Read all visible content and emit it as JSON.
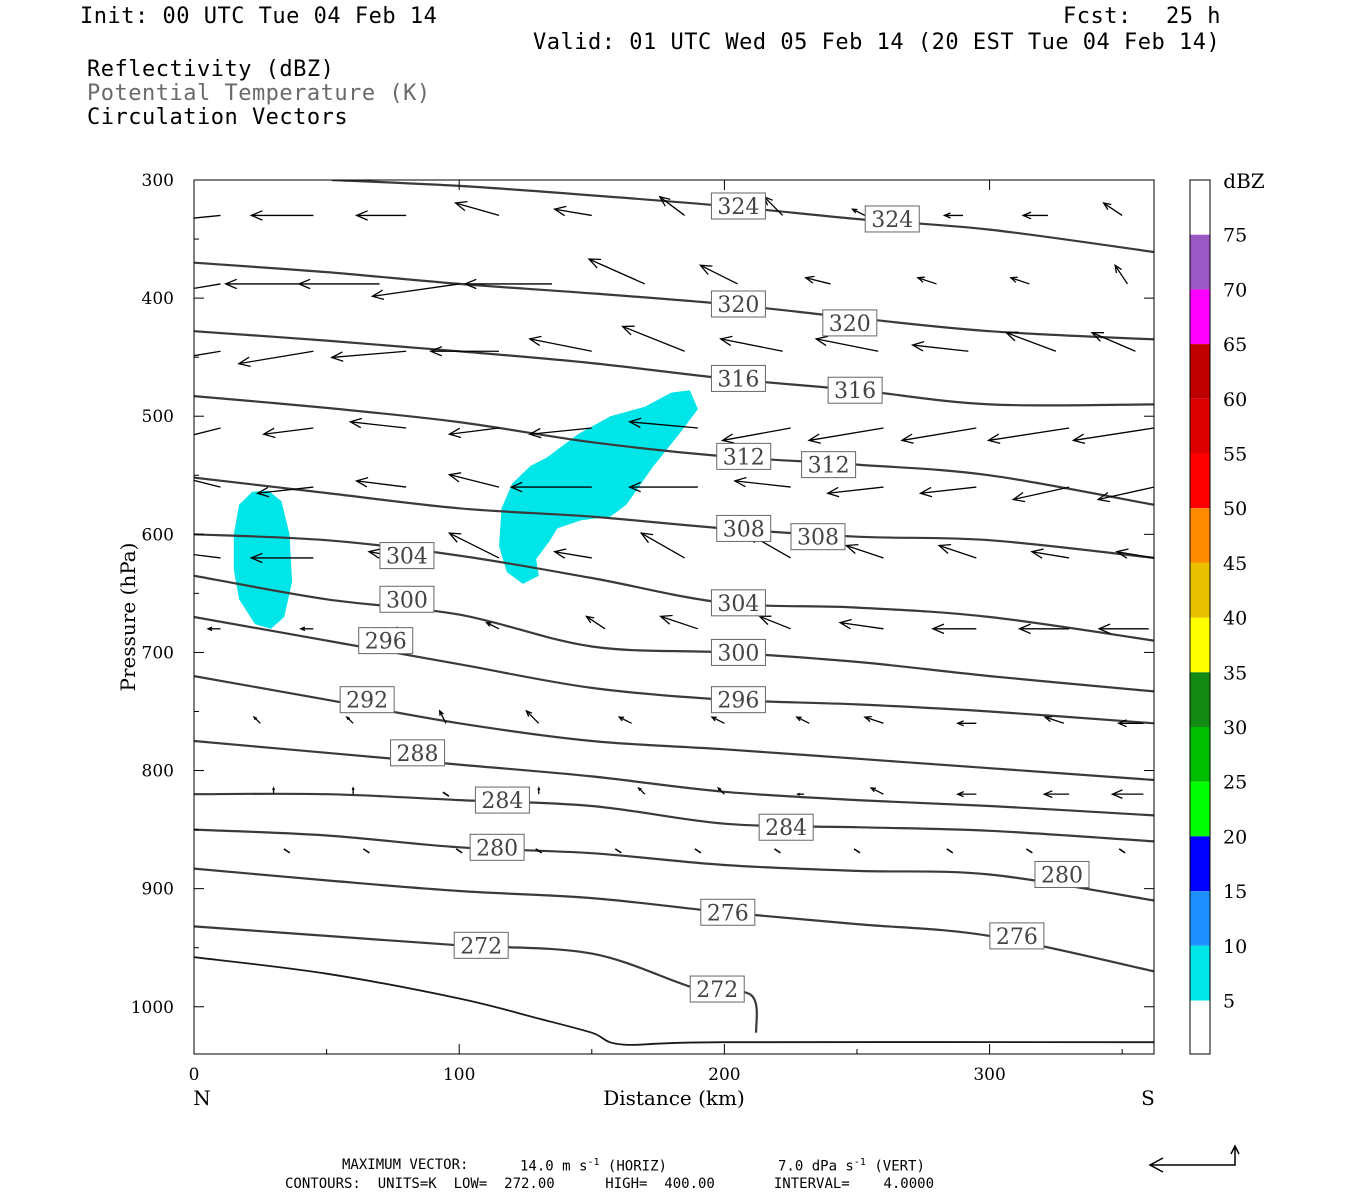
{
  "header": {
    "init": "Init: 00 UTC Tue 04 Feb 14",
    "fcst_label": "Fcst:",
    "fcst_value": "25 h",
    "valid": "Valid: 01 UTC Wed 05 Feb 14 (20 EST Tue 04 Feb 14)",
    "fields": [
      "Reflectivity (dBZ)",
      "Potential Temperature (K)",
      "Circulation Vectors"
    ]
  },
  "footer": {
    "max_vector_label": "MAXIMUM VECTOR:",
    "horiz_value": "14.0 m s",
    "horiz_exp": "-1",
    "horiz_unit": "(HORIZ)",
    "vert_value": "7.0 dPa s",
    "vert_exp": "-1",
    "vert_unit": "(VERT)",
    "contours": "CONTOURS:  UNITS=K  LOW=  272.00      HIGH=  400.00       INTERVAL=    4.0000"
  },
  "colors": {
    "contour": "#3a3a3a",
    "reflectivity_5": "#00e5e8"
  },
  "chart_data": {
    "type": "cross-section",
    "xlabel": "Distance (km)",
    "ylabel": "Pressure (hPa)",
    "xlim": [
      0,
      362
    ],
    "ylim": [
      300,
      1040
    ],
    "x_ticks": [
      0,
      100,
      200,
      300
    ],
    "y_ticks": [
      300,
      400,
      500,
      600,
      700,
      800,
      900,
      1000
    ],
    "x_end_labels": {
      "left": "N",
      "right": "S"
    },
    "colorbar": {
      "title": "dBZ",
      "levels": [
        "75",
        "70",
        "65",
        "60",
        "55",
        "50",
        "45",
        "40",
        "35",
        "30",
        "25",
        "20",
        "15",
        "10",
        "5"
      ],
      "colors": [
        "#9b59c6",
        "#ff00ff",
        "#c00000",
        "#dd0000",
        "#ff0000",
        "#ff8c00",
        "#e8c000",
        "#ffff00",
        "#138a13",
        "#00bf00",
        "#00ff00",
        "#0000ff",
        "#1e90ff",
        "#00e5e8",
        "#ffffff"
      ]
    },
    "reflectivity_areas": [
      {
        "dbz": "5-10",
        "polygon": [
          [
            15,
            600
          ],
          [
            17,
            575
          ],
          [
            22,
            564
          ],
          [
            28,
            563
          ],
          [
            33,
            572
          ],
          [
            36,
            600
          ],
          [
            37,
            640
          ],
          [
            34,
            670
          ],
          [
            29,
            680
          ],
          [
            23,
            676
          ],
          [
            17,
            655
          ],
          [
            15,
            630
          ]
        ]
      },
      {
        "dbz": "5-10",
        "polygon": [
          [
            116,
            578
          ],
          [
            120,
            557
          ],
          [
            127,
            542
          ],
          [
            133,
            535
          ],
          [
            145,
            515
          ],
          [
            157,
            500
          ],
          [
            170,
            492
          ],
          [
            180,
            480
          ],
          [
            187,
            478
          ],
          [
            190,
            494
          ],
          [
            183,
            515
          ],
          [
            173,
            543
          ],
          [
            163,
            575
          ],
          [
            157,
            585
          ],
          [
            146,
            588
          ],
          [
            137,
            595
          ],
          [
            134,
            606
          ],
          [
            129,
            621
          ],
          [
            130,
            635
          ],
          [
            124,
            642
          ],
          [
            118,
            632
          ],
          [
            115,
            610
          ]
        ]
      }
    ],
    "theta_contours": [
      {
        "value": "324",
        "points": [
          [
            52,
            300
          ],
          [
            100,
            305
          ],
          [
            150,
            313
          ],
          [
            200,
            322
          ],
          [
            250,
            333
          ],
          [
            300,
            342
          ],
          [
            362,
            361
          ]
        ],
        "labels": [
          [
            197,
            322
          ],
          [
            255,
            333
          ]
        ]
      },
      {
        "value": "320",
        "points": [
          [
            0,
            370
          ],
          [
            50,
            378
          ],
          [
            100,
            388
          ],
          [
            150,
            396
          ],
          [
            200,
            405
          ],
          [
            250,
            417
          ],
          [
            300,
            428
          ],
          [
            362,
            435
          ]
        ],
        "labels": [
          [
            197,
            405
          ],
          [
            239,
            421
          ]
        ]
      },
      {
        "value": "316",
        "points": [
          [
            0,
            428
          ],
          [
            50,
            436
          ],
          [
            100,
            445
          ],
          [
            150,
            455
          ],
          [
            200,
            468
          ],
          [
            250,
            478
          ],
          [
            300,
            490
          ],
          [
            362,
            490
          ]
        ],
        "labels": [
          [
            197,
            468
          ],
          [
            241,
            478
          ]
        ]
      },
      {
        "value": "312",
        "points": [
          [
            0,
            483
          ],
          [
            50,
            493
          ],
          [
            100,
            505
          ],
          [
            150,
            522
          ],
          [
            200,
            534
          ],
          [
            250,
            541
          ],
          [
            300,
            550
          ],
          [
            362,
            575
          ]
        ],
        "labels": [
          [
            199,
            534
          ],
          [
            231,
            541
          ]
        ]
      },
      {
        "value": "308",
        "points": [
          [
            0,
            552
          ],
          [
            50,
            565
          ],
          [
            100,
            578
          ],
          [
            150,
            585
          ],
          [
            200,
            595
          ],
          [
            250,
            602
          ],
          [
            300,
            605
          ],
          [
            362,
            620
          ]
        ],
        "labels": [
          [
            199,
            595
          ],
          [
            227,
            602
          ]
        ]
      },
      {
        "value": "304",
        "points": [
          [
            0,
            600
          ],
          [
            50,
            605
          ],
          [
            100,
            618
          ],
          [
            150,
            637
          ],
          [
            200,
            658
          ],
          [
            250,
            662
          ],
          [
            300,
            670
          ],
          [
            362,
            690
          ]
        ],
        "labels": [
          [
            72,
            618
          ],
          [
            197,
            658
          ]
        ]
      },
      {
        "value": "300",
        "points": [
          [
            0,
            635
          ],
          [
            50,
            655
          ],
          [
            100,
            668
          ],
          [
            150,
            695
          ],
          [
            200,
            700
          ],
          [
            250,
            708
          ],
          [
            300,
            720
          ],
          [
            362,
            733
          ]
        ],
        "labels": [
          [
            72,
            655
          ],
          [
            197,
            700
          ]
        ]
      },
      {
        "value": "296",
        "points": [
          [
            0,
            670
          ],
          [
            50,
            690
          ],
          [
            100,
            710
          ],
          [
            150,
            730
          ],
          [
            200,
            740
          ],
          [
            250,
            744
          ],
          [
            300,
            750
          ],
          [
            362,
            760
          ]
        ],
        "labels": [
          [
            64,
            690
          ],
          [
            197,
            740
          ]
        ]
      },
      {
        "value": "292",
        "points": [
          [
            0,
            720
          ],
          [
            50,
            740
          ],
          [
            100,
            760
          ],
          [
            150,
            775
          ],
          [
            200,
            782
          ],
          [
            250,
            790
          ],
          [
            300,
            798
          ],
          [
            362,
            808
          ]
        ],
        "labels": [
          [
            57,
            740
          ]
        ]
      },
      {
        "value": "288",
        "points": [
          [
            0,
            775
          ],
          [
            50,
            785
          ],
          [
            100,
            795
          ],
          [
            150,
            805
          ],
          [
            200,
            818
          ],
          [
            250,
            825
          ],
          [
            300,
            830
          ],
          [
            362,
            838
          ]
        ],
        "labels": [
          [
            76,
            785
          ]
        ]
      },
      {
        "value": "284",
        "points": [
          [
            0,
            820
          ],
          [
            50,
            820
          ],
          [
            100,
            825
          ],
          [
            150,
            830
          ],
          [
            200,
            845
          ],
          [
            250,
            848
          ],
          [
            300,
            851
          ],
          [
            362,
            860
          ]
        ],
        "labels": [
          [
            108,
            825
          ],
          [
            215,
            848
          ]
        ]
      },
      {
        "value": "280",
        "points": [
          [
            0,
            850
          ],
          [
            50,
            855
          ],
          [
            100,
            865
          ],
          [
            150,
            870
          ],
          [
            200,
            880
          ],
          [
            250,
            885
          ],
          [
            300,
            888
          ],
          [
            362,
            910
          ]
        ],
        "labels": [
          [
            106,
            865
          ],
          [
            319,
            888
          ]
        ]
      },
      {
        "value": "276",
        "points": [
          [
            0,
            883
          ],
          [
            50,
            893
          ],
          [
            100,
            902
          ],
          [
            150,
            908
          ],
          [
            200,
            920
          ],
          [
            250,
            930
          ],
          [
            300,
            940
          ],
          [
            362,
            970
          ]
        ],
        "labels": [
          [
            193,
            920
          ],
          [
            302,
            940
          ]
        ]
      },
      {
        "value": "272",
        "points": [
          [
            0,
            932
          ],
          [
            50,
            940
          ],
          [
            100,
            948
          ],
          [
            150,
            955
          ],
          [
            190,
            985
          ],
          [
            210,
            990
          ],
          [
            212,
            1022
          ]
        ],
        "labels": [
          [
            100,
            948
          ],
          [
            189,
            985
          ]
        ]
      }
    ],
    "surface_line": [
      [
        0,
        958
      ],
      [
        50,
        972
      ],
      [
        100,
        993
      ],
      [
        130,
        1010
      ],
      [
        150,
        1022
      ],
      [
        162,
        1032
      ],
      [
        200,
        1030
      ],
      [
        362,
        1030
      ]
    ],
    "vectors": [
      {
        "row": 330,
        "x": [
          10,
          45,
          80,
          115,
          150,
          185,
          222,
          253,
          290,
          322,
          350
        ],
        "u": [
          -1.0,
          -1.0,
          -0.8,
          -0.7,
          -0.6,
          -0.4,
          -0.3,
          -0.2,
          -0.3,
          -0.4,
          -0.3
        ],
        "w": [
          0.1,
          0.0,
          0.0,
          -0.2,
          -0.1,
          -0.3,
          -0.3,
          -0.1,
          0.0,
          0.0,
          -0.2
        ]
      },
      {
        "row": 388,
        "x": [
          10,
          40,
          70,
          100,
          135,
          170,
          205,
          240,
          280,
          315,
          352
        ],
        "u": [
          -1.2,
          -1.2,
          -1.3,
          -1.4,
          -1.4,
          -0.9,
          -0.6,
          -0.4,
          -0.3,
          -0.3,
          -0.2
        ],
        "w": [
          0.2,
          0.0,
          0.0,
          0.2,
          0.0,
          -0.4,
          -0.3,
          -0.1,
          -0.1,
          -0.1,
          -0.3
        ]
      },
      {
        "row": 445,
        "x": [
          10,
          45,
          80,
          115,
          150,
          185,
          222,
          258,
          292,
          325,
          355
        ],
        "u": [
          -1.2,
          -1.2,
          -1.2,
          -1.1,
          -1.0,
          -1.0,
          -1.0,
          -1.0,
          -0.9,
          -0.8,
          -0.7
        ],
        "w": [
          0.2,
          0.2,
          0.1,
          0.0,
          -0.2,
          -0.4,
          -0.2,
          -0.2,
          -0.1,
          -0.3,
          -0.3
        ]
      },
      {
        "row": 510,
        "x": [
          10,
          45,
          80,
          115,
          150,
          190,
          225,
          260,
          295,
          330,
          362
        ],
        "u": [
          -0.8,
          -0.8,
          -0.9,
          -0.8,
          -1.0,
          -1.1,
          -1.1,
          -1.2,
          -1.2,
          -1.3,
          -1.3
        ],
        "w": [
          0.2,
          0.1,
          -0.1,
          0.1,
          0.1,
          -0.1,
          0.2,
          0.2,
          0.2,
          0.2,
          0.2
        ]
      },
      {
        "row": 560,
        "x": [
          10,
          45,
          80,
          115,
          150,
          190,
          225,
          260,
          295,
          330,
          362
        ],
        "u": [
          -0.8,
          -0.9,
          -0.8,
          -0.8,
          -1.3,
          -1.1,
          -0.9,
          -0.9,
          -0.9,
          -0.9,
          -0.9
        ],
        "w": [
          -0.2,
          0.1,
          -0.1,
          -0.2,
          0.0,
          0.0,
          -0.1,
          0.1,
          0.1,
          0.2,
          0.2
        ]
      },
      {
        "row": 620,
        "x": [
          10,
          45,
          80,
          115,
          150,
          185,
          225,
          260,
          295,
          330,
          362
        ],
        "u": [
          -0.8,
          -1.0,
          -0.6,
          -0.8,
          -0.6,
          -0.7,
          -0.7,
          -0.6,
          -0.6,
          -0.6,
          -0.6
        ],
        "w": [
          -0.1,
          0.0,
          -0.1,
          -0.4,
          -0.1,
          -0.4,
          -0.4,
          -0.2,
          -0.2,
          -0.1,
          -0.1
        ]
      },
      {
        "row": 680,
        "x": [
          10,
          45,
          80,
          115,
          155,
          190,
          225,
          260,
          295,
          330,
          360
        ],
        "u": [
          -0.2,
          -0.2,
          -0.2,
          -0.2,
          -0.3,
          -0.6,
          -0.5,
          -0.7,
          -0.7,
          -0.8,
          -0.8
        ],
        "w": [
          0.0,
          0.0,
          0.0,
          -0.1,
          -0.2,
          -0.2,
          -0.2,
          -0.1,
          0.0,
          0.0,
          0.0
        ]
      },
      {
        "row": 760,
        "x": [
          25,
          60,
          95,
          130,
          165,
          200,
          232,
          260,
          295,
          328,
          358
        ],
        "u": [
          -0.1,
          -0.1,
          -0.1,
          -0.2,
          -0.2,
          -0.2,
          -0.2,
          -0.3,
          -0.3,
          -0.3,
          -0.4
        ],
        "w": [
          -0.1,
          -0.1,
          -0.2,
          -0.2,
          -0.1,
          -0.1,
          -0.1,
          -0.1,
          0.0,
          -0.1,
          0.0
        ]
      },
      {
        "row": 820,
        "x": [
          30,
          60,
          95,
          130,
          170,
          200,
          230,
          260,
          295,
          330,
          358
        ],
        "u": [
          0.0,
          0.0,
          0.0,
          0.0,
          -0.1,
          -0.1,
          -0.1,
          -0.2,
          -0.3,
          -0.4,
          -0.5
        ],
        "w": [
          -0.1,
          -0.1,
          0.0,
          -0.1,
          -0.1,
          -0.1,
          0.0,
          -0.1,
          0.0,
          0.0,
          0.0
        ]
      },
      {
        "row": 868,
        "x": [
          35,
          65,
          100,
          130,
          160,
          190,
          220,
          250,
          285,
          315,
          350
        ],
        "u": [
          0.0,
          0.0,
          0.0,
          0.0,
          0.0,
          0.0,
          0.0,
          0.0,
          0.0,
          0.0,
          0.0
        ],
        "w": [
          0.0,
          0.0,
          0.0,
          0.0,
          0.0,
          0.0,
          0.0,
          0.0,
          0.0,
          0.0,
          0.0
        ]
      }
    ]
  }
}
